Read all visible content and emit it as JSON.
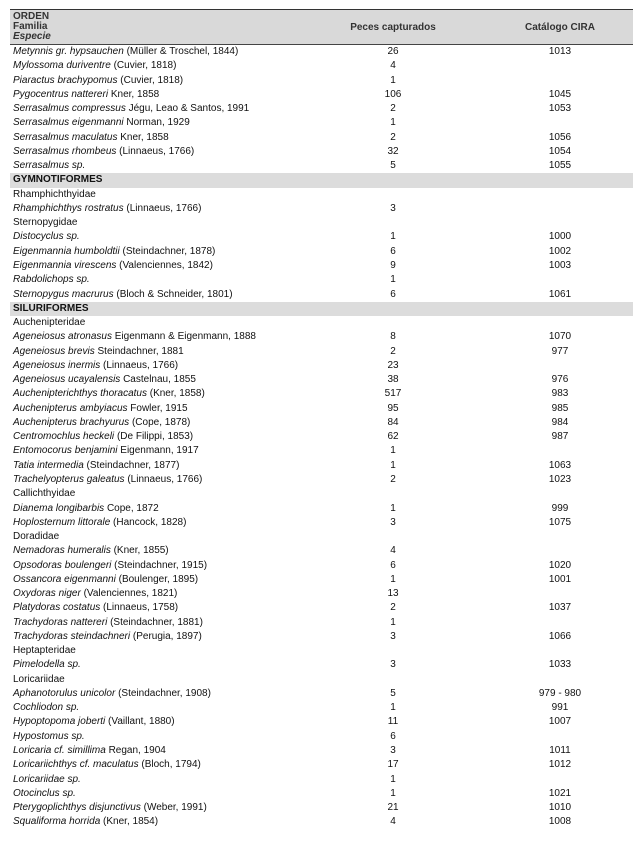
{
  "header": {
    "col1_line1": "ORDEN",
    "col1_line2": "Familia",
    "col1_line3": "Especie",
    "col2": "Peces capturados",
    "col3": "Catálogo CIRA"
  },
  "rows": [
    {
      "type": "species",
      "italic": "Metynnis gr. hypsauchen",
      "author": " (Müller & Troschel, 1844)",
      "n": "26",
      "cat": "1013"
    },
    {
      "type": "species",
      "italic": "Mylossoma duriventre",
      "author": " (Cuvier, 1818)",
      "n": "4",
      "cat": ""
    },
    {
      "type": "species",
      "italic": "Piaractus brachypomus",
      "author": " (Cuvier, 1818)",
      "n": "1",
      "cat": ""
    },
    {
      "type": "species",
      "italic": "Pygocentrus nattereri",
      "author": " Kner, 1858",
      "n": "106",
      "cat": "1045"
    },
    {
      "type": "species",
      "italic": "Serrasalmus compressus",
      "author": " Jégu, Leao & Santos, 1991",
      "n": "2",
      "cat": "1053"
    },
    {
      "type": "species",
      "italic": "Serrasalmus eigenmanni",
      "author": " Norman, 1929",
      "n": "1",
      "cat": ""
    },
    {
      "type": "species",
      "italic": "Serrasalmus maculatus",
      "author": " Kner, 1858",
      "n": "2",
      "cat": "1056"
    },
    {
      "type": "species",
      "italic": "Serrasalmus rhombeus",
      "author": " (Linnaeus, 1766)",
      "n": "32",
      "cat": "1054"
    },
    {
      "type": "species",
      "italic": "Serrasalmus sp.",
      "author": "",
      "n": "5",
      "cat": "1055"
    },
    {
      "type": "order",
      "label": "GYMNOTIFORMES"
    },
    {
      "type": "family",
      "label": "Rhamphichthyidae"
    },
    {
      "type": "species",
      "italic": "Rhamphichthys rostratus",
      "author": " (Linnaeus, 1766)",
      "n": "3",
      "cat": ""
    },
    {
      "type": "family",
      "label": "Sternopygidae"
    },
    {
      "type": "species",
      "italic": "Distocyclus sp.",
      "author": "",
      "n": "1",
      "cat": "1000"
    },
    {
      "type": "species",
      "italic": "Eigenmannia humboldtii",
      "author": " (Steindachner, 1878)",
      "n": "6",
      "cat": "1002"
    },
    {
      "type": "species",
      "italic": "Eigenmannia virescens",
      "author": " (Valenciennes, 1842)",
      "n": "9",
      "cat": "1003"
    },
    {
      "type": "species",
      "italic": "Rabdolichops sp.",
      "author": "",
      "n": "1",
      "cat": ""
    },
    {
      "type": "species",
      "italic": "Sternopygus macrurus",
      "author": " (Bloch & Schneider, 1801)",
      "n": "6",
      "cat": "1061"
    },
    {
      "type": "order",
      "label": "SILURIFORMES"
    },
    {
      "type": "family",
      "label": "Auchenipteridae"
    },
    {
      "type": "species",
      "italic": "Ageneiosus atronasus",
      "author": " Eigenmann & Eigenmann, 1888",
      "n": "8",
      "cat": "1070"
    },
    {
      "type": "species",
      "italic": "Ageneiosus brevis",
      "author": " Steindachner, 1881",
      "n": "2",
      "cat": "977"
    },
    {
      "type": "species",
      "italic": "Ageneiosus inermis",
      "author": " (Linnaeus, 1766)",
      "n": "23",
      "cat": ""
    },
    {
      "type": "species",
      "italic": "Ageneiosus ucayalensis",
      "author": " Castelnau, 1855",
      "n": "38",
      "cat": "976"
    },
    {
      "type": "species",
      "italic": "Auchenipterichthys thoracatus",
      "author": " (Kner, 1858)",
      "n": "517",
      "cat": "983"
    },
    {
      "type": "species",
      "italic": "Auchenipterus ambyiacus",
      "author": " Fowler, 1915",
      "n": "95",
      "cat": "985"
    },
    {
      "type": "species",
      "italic": "Auchenipterus brachyurus",
      "author": " (Cope, 1878)",
      "n": "84",
      "cat": "984"
    },
    {
      "type": "species",
      "italic": "Centromochlus heckeli",
      "author": " (De Filippi, 1853)",
      "n": "62",
      "cat": "987"
    },
    {
      "type": "species",
      "italic": "Entomocorus benjamini",
      "author": " Eigenmann, 1917",
      "n": "1",
      "cat": ""
    },
    {
      "type": "species",
      "italic": "Tatia intermedia",
      "author": " (Steindachner, 1877)",
      "n": "1",
      "cat": "1063"
    },
    {
      "type": "species",
      "italic": "Trachelyopterus galeatus",
      "author": " (Linnaeus, 1766)",
      "n": "2",
      "cat": "1023"
    },
    {
      "type": "family",
      "label": "Callichthyidae"
    },
    {
      "type": "species",
      "italic": "Dianema longibarbis",
      "author": " Cope, 1872",
      "n": "1",
      "cat": "999"
    },
    {
      "type": "species",
      "italic": "Hoplosternum littorale",
      "author": " (Hancock, 1828)",
      "n": "3",
      "cat": "1075"
    },
    {
      "type": "family",
      "label": "Doradidae"
    },
    {
      "type": "species",
      "italic": "Nemadoras humeralis",
      "author": " (Kner, 1855)",
      "n": "4",
      "cat": ""
    },
    {
      "type": "species",
      "italic": "Opsodoras boulengeri",
      "author": " (Steindachner, 1915)",
      "n": "6",
      "cat": "1020"
    },
    {
      "type": "species",
      "italic": "Ossancora eigenmanni",
      "author": " (Boulenger, 1895)",
      "n": "1",
      "cat": "1001"
    },
    {
      "type": "species",
      "italic": "Oxydoras niger",
      "author": " (Valenciennes, 1821)",
      "n": "13",
      "cat": ""
    },
    {
      "type": "species",
      "italic": "Platydoras costatus",
      "author": " (Linnaeus, 1758)",
      "n": "2",
      "cat": "1037"
    },
    {
      "type": "species",
      "italic": "Trachydoras nattereri",
      "author": " (Steindachner, 1881)",
      "n": "1",
      "cat": ""
    },
    {
      "type": "species",
      "italic": "Trachydoras steindachneri",
      "author": " (Perugia, 1897)",
      "n": "3",
      "cat": "1066"
    },
    {
      "type": "family",
      "label": "Heptapteridae"
    },
    {
      "type": "species",
      "italic": "Pimelodella sp.",
      "author": "",
      "n": "3",
      "cat": "1033"
    },
    {
      "type": "family",
      "label": "Loricariidae"
    },
    {
      "type": "species",
      "italic": "Aphanotorulus unicolor",
      "author": " (Steindachner, 1908)",
      "n": "5",
      "cat": "979 - 980"
    },
    {
      "type": "species",
      "italic": "Cochliodon sp.",
      "author": "",
      "n": "1",
      "cat": "991"
    },
    {
      "type": "species",
      "italic": "Hypoptopoma joberti",
      "author": " (Vaillant, 1880)",
      "n": "11",
      "cat": "1007"
    },
    {
      "type": "species",
      "italic": "Hypostomus sp.",
      "author": "",
      "n": "6",
      "cat": ""
    },
    {
      "type": "species",
      "italic": "Loricaria cf. simillima",
      "author": " Regan, 1904",
      "n": "3",
      "cat": "1011"
    },
    {
      "type": "species",
      "italic": "Loricariichthys cf. maculatus",
      "author": " (Bloch, 1794)",
      "n": "17",
      "cat": "1012"
    },
    {
      "type": "species",
      "italic": "Loricariidae sp.",
      "author": "",
      "n": "1",
      "cat": ""
    },
    {
      "type": "species",
      "italic": "Otocinclus sp.",
      "author": "",
      "n": "1",
      "cat": "1021"
    },
    {
      "type": "species",
      "italic": "Pterygoplichthys disjunctivus",
      "author": " (Weber, 1991)",
      "n": "21",
      "cat": "1010"
    },
    {
      "type": "species",
      "italic": "Squaliforma horrida",
      "author": " (Kner, 1854)",
      "n": "4",
      "cat": "1008"
    }
  ]
}
